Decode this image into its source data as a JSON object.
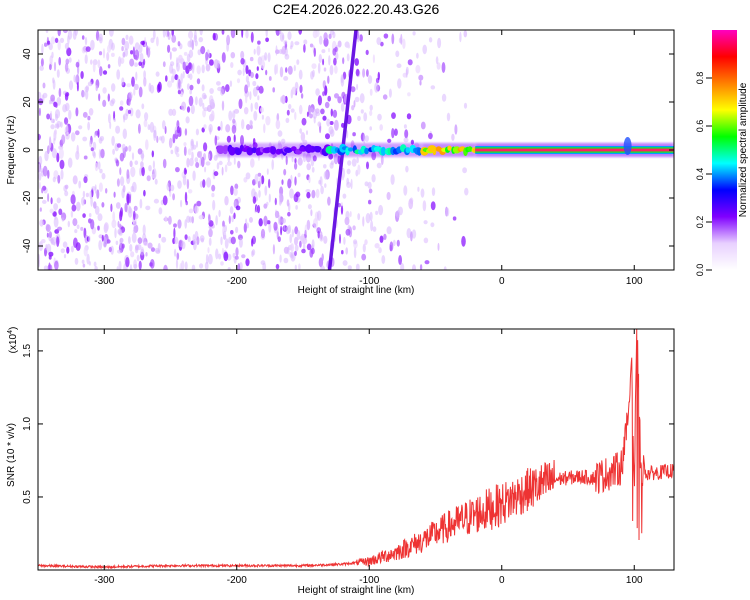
{
  "figure": {
    "title": "C2E4.2026.022.20.43.G26"
  },
  "chart_data": [
    {
      "type": "heatmap",
      "title": "C2E4.2026.022.20.43.G26",
      "xlabel": "Height of straight line (km)",
      "ylabel": "Frequency (Hz)",
      "xlim": [
        -350,
        130
      ],
      "ylim": [
        -50,
        50
      ],
      "xticks": [
        -300,
        -200,
        -100,
        0,
        100
      ],
      "yticks": [
        -40,
        -20,
        0,
        20,
        40
      ],
      "colorbar": {
        "label": "Normalized spectral amplitude",
        "range": [
          0,
          1
        ],
        "ticks": [
          0.0,
          0.2,
          0.4,
          0.6,
          0.8
        ],
        "colormap": [
          "#ffffff",
          "#e8d0ff",
          "#8000ff",
          "#0000ff",
          "#00ffff",
          "#00ff00",
          "#ffff00",
          "#ff8000",
          "#ff0000",
          "#ff00c0"
        ]
      },
      "features": {
        "noise_region_x": [
          -350,
          -80
        ],
        "diagonal_streak": {
          "from": [
            -130,
            -50
          ],
          "to": [
            -110,
            50
          ]
        },
        "ridge_center_hz": 0,
        "ridge_segments": [
          {
            "x": [
              -215,
              -130
            ],
            "amplitude": 0.25
          },
          {
            "x": [
              -130,
              -60
            ],
            "amplitude": 0.45
          },
          {
            "x": [
              -60,
              -20
            ],
            "amplitude": 0.7
          },
          {
            "x": [
              -20,
              130
            ],
            "amplitude": 0.95
          }
        ]
      }
    },
    {
      "type": "line",
      "xlabel": "Height of straight line (km)",
      "ylabel": "SNR (10 * v/v)",
      "y_multiplier": "(x10^4)",
      "xlim": [
        -350,
        130
      ],
      "ylim": [
        0,
        1.65
      ],
      "xticks": [
        -300,
        -200,
        -100,
        0,
        100
      ],
      "yticks": [
        0.5,
        1.0,
        1.5
      ],
      "ytick_labels": [
        "0.5",
        "1.0",
        "1.5"
      ],
      "series": [
        {
          "color": "#ee3333",
          "x": [
            -350,
            -300,
            -250,
            -200,
            -150,
            -120,
            -100,
            -80,
            -60,
            -40,
            -20,
            0,
            20,
            40,
            60,
            70,
            80,
            90,
            95,
            98,
            100,
            102,
            105,
            110,
            120,
            130
          ],
          "y": [
            0.03,
            0.02,
            0.03,
            0.03,
            0.03,
            0.04,
            0.06,
            0.12,
            0.2,
            0.3,
            0.38,
            0.45,
            0.55,
            0.62,
            0.64,
            0.63,
            0.66,
            0.7,
            1.0,
            1.55,
            0.5,
            1.65,
            0.7,
            0.66,
            0.67,
            0.68
          ]
        }
      ]
    }
  ]
}
